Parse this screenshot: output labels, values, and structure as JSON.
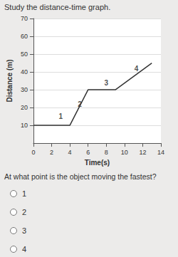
{
  "chart_data": {
    "type": "line",
    "title": "Study the distance-time graph.",
    "x_label": "Time(s)",
    "y_label": "Distance (m)",
    "x": [
      0,
      4,
      6,
      9,
      13
    ],
    "values": [
      10,
      10,
      30,
      30,
      45
    ],
    "color": "#333333",
    "xlim": [
      0,
      14
    ],
    "xticks": [
      0,
      2,
      4,
      6,
      8,
      10,
      12,
      14
    ],
    "ylim": [
      0,
      70
    ],
    "yticks": [
      10,
      20,
      30,
      40,
      50,
      60,
      70
    ],
    "grid": true,
    "annotations": [
      {
        "text": "1",
        "x": 3,
        "y": 15
      },
      {
        "text": "2",
        "x": 5.1,
        "y": 22
      },
      {
        "text": "3",
        "x": 8,
        "y": 34
      },
      {
        "text": "4",
        "x": 11.3,
        "y": 42
      }
    ]
  },
  "question": {
    "text": "At what point is the object moving the fastest?",
    "options": [
      "1",
      "2",
      "3",
      "4"
    ]
  }
}
